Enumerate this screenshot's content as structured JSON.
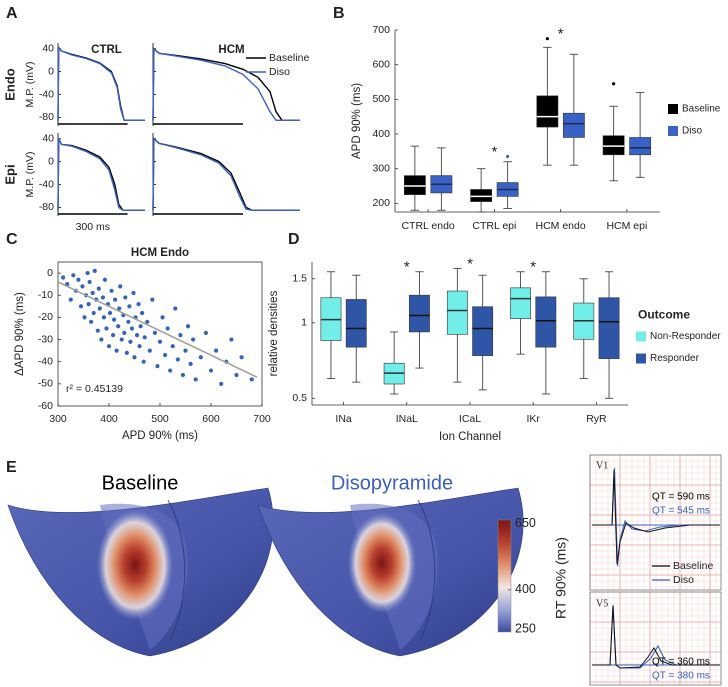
{
  "chart_data": [
    {
      "panel": "A",
      "type": "line",
      "column_titles": [
        "CTRL",
        "HCM"
      ],
      "row_titles": [
        "Endo",
        "Epi"
      ],
      "ylabel": "M.P. (mV)",
      "ylim": [
        -95,
        50
      ],
      "yticks": [
        40,
        0,
        -40,
        -80
      ],
      "series_names": [
        "Baseline",
        "Diso"
      ],
      "colors": [
        "#000000",
        "#3a62c4"
      ],
      "scale_bar": {
        "value": 300,
        "label": "300 ms"
      },
      "subplots": [
        {
          "xlim": [
            0,
            375
          ],
          "x": [
            0,
            3,
            15,
            60,
            120,
            180,
            230,
            255,
            270,
            285,
            375
          ],
          "series": [
            {
              "values": [
                -85,
                42,
                36,
                30,
                24,
                15,
                0,
                -25,
                -60,
                -85,
                -85
              ]
            },
            {
              "values": [
                -85,
                42,
                36,
                29,
                23,
                14,
                -2,
                -28,
                -65,
                -85,
                -85
              ]
            }
          ]
        },
        {
          "xlim": [
            0,
            490
          ],
          "x": [
            0,
            3,
            20,
            80,
            160,
            240,
            300,
            350,
            390,
            410,
            430,
            490
          ],
          "series": [
            {
              "values": [
                -85,
                40,
                32,
                28,
                22,
                14,
                4,
                -10,
                -35,
                -70,
                -85,
                -85
              ]
            },
            {
              "values": [
                -85,
                40,
                32,
                27,
                20,
                10,
                -5,
                -30,
                -70,
                -85,
                -85,
                -85
              ]
            }
          ]
        },
        {
          "xlim": [
            0,
            375
          ],
          "x": [
            0,
            3,
            15,
            60,
            120,
            180,
            220,
            245,
            262,
            280,
            375
          ],
          "series": [
            {
              "values": [
                -85,
                40,
                30,
                28,
                20,
                8,
                -10,
                -40,
                -75,
                -85,
                -85
              ]
            },
            {
              "values": [
                -85,
                40,
                30,
                27,
                18,
                5,
                -15,
                -50,
                -80,
                -85,
                -85
              ]
            }
          ]
        },
        {
          "xlim": [
            0,
            490
          ],
          "x": [
            0,
            3,
            20,
            80,
            160,
            220,
            260,
            290,
            310,
            330,
            490
          ],
          "series": [
            {
              "values": [
                -85,
                40,
                32,
                25,
                14,
                0,
                -20,
                -55,
                -80,
                -85,
                -85
              ]
            },
            {
              "values": [
                -85,
                40,
                32,
                24,
                12,
                -3,
                -25,
                -62,
                -83,
                -85,
                -85
              ]
            }
          ]
        }
      ]
    },
    {
      "panel": "B",
      "type": "box",
      "categories": [
        "CTRL endo",
        "CTRL epi",
        "HCM endo",
        "HCM epi"
      ],
      "ylabel": "APD 90% (ms)",
      "ylim": [
        175,
        700
      ],
      "yticks": [
        200,
        300,
        400,
        500,
        600,
        700
      ],
      "legend": "right",
      "series": [
        {
          "name": "Baseline",
          "color": "#000000",
          "median_color": "#ffffff",
          "boxes": [
            {
              "whislo": 180,
              "q1": 225,
              "med": 250,
              "q3": 280,
              "whishi": 365,
              "fliers": []
            },
            {
              "whislo": 175,
              "q1": 205,
              "med": 220,
              "q3": 240,
              "whishi": 300,
              "fliers": []
            },
            {
              "whislo": 310,
              "q1": 420,
              "med": 450,
              "q3": 510,
              "whishi": 650,
              "fliers": [
                675
              ]
            },
            {
              "whislo": 265,
              "q1": 340,
              "med": 365,
              "q3": 395,
              "whishi": 480,
              "fliers": [
                545
              ]
            }
          ]
        },
        {
          "name": "Diso",
          "color": "#3a62c4",
          "median_color": "#1a2a5a",
          "boxes": [
            {
              "whislo": 180,
              "q1": 230,
              "med": 255,
              "q3": 280,
              "whishi": 360,
              "fliers": []
            },
            {
              "whislo": 185,
              "q1": 220,
              "med": 240,
              "q3": 260,
              "whishi": 320,
              "fliers": [
                335
              ]
            },
            {
              "whislo": 310,
              "q1": 390,
              "med": 430,
              "q3": 460,
              "whishi": 630,
              "fliers": []
            },
            {
              "whislo": 275,
              "q1": 340,
              "med": 360,
              "q3": 390,
              "whishi": 520,
              "fliers": []
            }
          ]
        }
      ],
      "annotations": [
        {
          "text": "*",
          "category": "CTRL epi"
        },
        {
          "text": "*",
          "category": "HCM endo"
        }
      ]
    },
    {
      "panel": "C",
      "type": "scatter",
      "title": "HCM Endo",
      "xlabel": "APD 90% (ms)",
      "ylabel": "ΔAPD 90% (ms)",
      "xlim": [
        300,
        700
      ],
      "xticks": [
        300,
        400,
        500,
        600,
        700
      ],
      "ylim": [
        -60,
        5
      ],
      "yticks": [
        -60,
        -50,
        -40,
        -30,
        -20,
        -10,
        0
      ],
      "color": "#3563b8",
      "x": [
        310,
        318,
        325,
        330,
        335,
        340,
        345,
        348,
        352,
        355,
        358,
        360,
        362,
        365,
        368,
        370,
        372,
        375,
        378,
        380,
        382,
        385,
        388,
        390,
        392,
        395,
        398,
        400,
        402,
        405,
        408,
        410,
        412,
        415,
        418,
        420,
        422,
        425,
        428,
        430,
        432,
        435,
        438,
        440,
        442,
        445,
        448,
        450,
        452,
        455,
        458,
        460,
        462,
        465,
        468,
        470,
        475,
        480,
        485,
        490,
        495,
        500,
        505,
        510,
        515,
        520,
        525,
        530,
        535,
        540,
        545,
        550,
        555,
        560,
        565,
        570,
        580,
        590,
        600,
        610,
        620,
        630,
        640,
        650,
        660,
        680
      ],
      "values": [
        -2,
        -5,
        -12,
        -1,
        -8,
        -3,
        -15,
        -6,
        -20,
        -10,
        0,
        -14,
        -4,
        -22,
        -9,
        -18,
        1,
        -12,
        -26,
        -7,
        -16,
        -30,
        -11,
        -20,
        -3,
        -25,
        -14,
        -33,
        -18,
        -8,
        -28,
        -21,
        -12,
        -35,
        -24,
        -16,
        -6,
        -30,
        -19,
        -27,
        -11,
        -36,
        -22,
        -15,
        -31,
        -25,
        -9,
        -38,
        -20,
        -28,
        -14,
        -33,
        -24,
        -18,
        -40,
        -29,
        -22,
        -35,
        -12,
        -27,
        -42,
        -31,
        -20,
        -37,
        -25,
        -44,
        -33,
        -16,
        -39,
        -28,
        -46,
        -35,
        -24,
        -41,
        -30,
        -48,
        -38,
        -27,
        -44,
        -35,
        -50,
        -40,
        -30,
        -46,
        -38,
        -48
      ],
      "fit_line": {
        "x": [
          300,
          690
        ],
        "y": [
          -4,
          -47
        ],
        "color": "#a0a0a0"
      },
      "annotation": "r² = 0.45139"
    },
    {
      "panel": "D",
      "type": "box",
      "log_scale": true,
      "categories": [
        "INa",
        "INaL",
        "ICaL",
        "IKr",
        "RyR"
      ],
      "xlabel": "Ion Channel",
      "ylabel": "relative densities",
      "ylim": [
        0.47,
        1.75
      ],
      "yticks": [
        0.5,
        1,
        1.5
      ],
      "legend": "right",
      "legend_title": "Outcome",
      "series": [
        {
          "name": "Non-Responder",
          "color": "#72eee8",
          "median_color": "#333333",
          "boxes": [
            {
              "whislo": 0.6,
              "q1": 0.85,
              "med": 1.03,
              "q3": 1.26,
              "whishi": 1.6,
              "fliers": []
            },
            {
              "whislo": 0.52,
              "q1": 0.57,
              "med": 0.63,
              "q3": 0.69,
              "whishi": 0.92,
              "fliers": []
            },
            {
              "whislo": 0.58,
              "q1": 0.9,
              "med": 1.12,
              "q3": 1.34,
              "whishi": 1.65,
              "fliers": []
            },
            {
              "whislo": 0.75,
              "q1": 1.04,
              "med": 1.25,
              "q3": 1.38,
              "whishi": 1.6,
              "fliers": []
            },
            {
              "whislo": 0.6,
              "q1": 0.86,
              "med": 1.02,
              "q3": 1.2,
              "whishi": 1.5,
              "fliers": []
            }
          ]
        },
        {
          "name": "Responder",
          "color": "#2f56a6",
          "median_color": "#111111",
          "boxes": [
            {
              "whislo": 0.58,
              "q1": 0.8,
              "med": 0.95,
              "q3": 1.24,
              "whishi": 1.55,
              "fliers": []
            },
            {
              "whislo": 0.66,
              "q1": 0.92,
              "med": 1.07,
              "q3": 1.29,
              "whishi": 1.6,
              "fliers": []
            },
            {
              "whislo": 0.54,
              "q1": 0.74,
              "med": 0.95,
              "q3": 1.16,
              "whishi": 1.55,
              "fliers": []
            },
            {
              "whislo": 0.52,
              "q1": 0.8,
              "med": 1.02,
              "q3": 1.27,
              "whishi": 1.6,
              "fliers": []
            },
            {
              "whislo": 0.5,
              "q1": 0.72,
              "med": 1.01,
              "q3": 1.26,
              "whishi": 1.6,
              "fliers": []
            }
          ]
        }
      ],
      "annotations": [
        {
          "text": "*",
          "category": "INaL"
        },
        {
          "text": "*",
          "category": "ICaL"
        },
        {
          "text": "*",
          "category": "IKr"
        }
      ]
    }
  ],
  "panel_e": {
    "panel": "E",
    "titles": [
      "Baseline",
      "Disopyramide"
    ],
    "title_colors": [
      "#000000",
      "#3a5fc0"
    ],
    "colorbar": {
      "label": "RT 90% (ms)",
      "ylim": [
        240,
        665
      ],
      "ticks": [
        250,
        400,
        650
      ],
      "colors": [
        "#3b4a9e",
        "#9aa6da",
        "#f2e6e2",
        "#e0906a",
        "#b8402e",
        "#7a1414"
      ]
    },
    "ecg": {
      "legend": [
        "Baseline",
        "Diso"
      ],
      "colors": [
        "#000000",
        "#3a62c4"
      ],
      "leads": [
        {
          "name": "V1",
          "qt": [
            "QT = 590 ms",
            "QT = 545 ms"
          ]
        },
        {
          "name": "V5",
          "qt": [
            "QT = 360 ms",
            "QT = 380 ms"
          ]
        }
      ]
    }
  }
}
